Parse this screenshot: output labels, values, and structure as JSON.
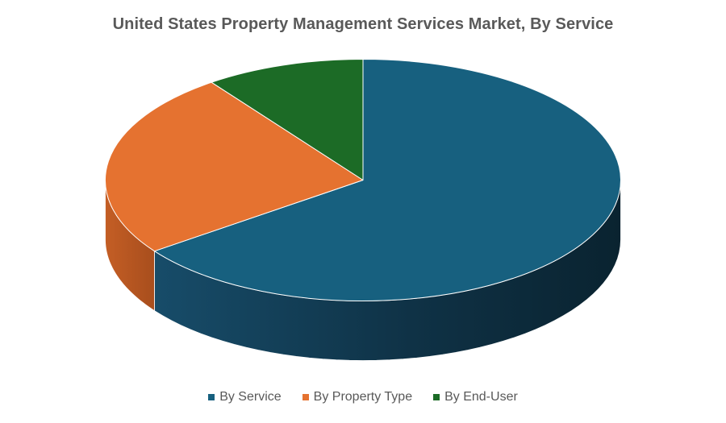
{
  "chart_data": {
    "type": "pie",
    "title": "United States Property Management Services Market, By Service",
    "three_d": true,
    "legend_position": "bottom",
    "categories": [
      "By Service",
      "By Property Type",
      "By End-User"
    ],
    "values": [
      65,
      25,
      10
    ],
    "colors": [
      "#17607F",
      "#E57230",
      "#1C6B26"
    ]
  }
}
